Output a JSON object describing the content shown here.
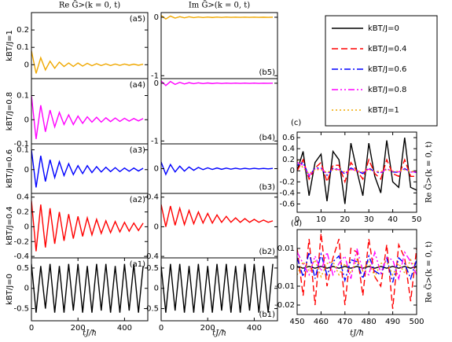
{
  "chart_data": [
    {
      "type": "line",
      "panel": "(a5)",
      "title": "Re G̃>(k = 0, t)",
      "ylabel": "kBT/J=1",
      "color": "#f0a800",
      "x": [
        0,
        20,
        40,
        60,
        80,
        100,
        120,
        140,
        160,
        180,
        200,
        220,
        240,
        260,
        280,
        300,
        320,
        340,
        360,
        380,
        400,
        420,
        440,
        460,
        480
      ],
      "values": [
        0.08,
        -0.05,
        0.04,
        -0.03,
        0.02,
        -0.02,
        0.015,
        -0.01,
        0.01,
        -0.01,
        0.01,
        -0.008,
        0.008,
        -0.006,
        0.006,
        -0.005,
        0.005,
        -0.005,
        0.004,
        -0.004,
        0.004,
        -0.003,
        0.003,
        -0.003,
        0.003
      ],
      "xlim": [
        0,
        500
      ],
      "ylim": [
        -0.08,
        0.3
      ],
      "yticks": [
        0,
        0.1,
        0.2
      ]
    },
    {
      "type": "line",
      "panel": "(a4)",
      "ylabel": "kBT/J=0.8",
      "color": "#ff00ff",
      "x": [
        0,
        20,
        40,
        60,
        80,
        100,
        120,
        140,
        160,
        180,
        200,
        220,
        240,
        260,
        280,
        300,
        320,
        340,
        360,
        380,
        400,
        420,
        440,
        460,
        480
      ],
      "values": [
        0.1,
        -0.08,
        0.06,
        -0.05,
        0.04,
        -0.03,
        0.03,
        -0.02,
        0.02,
        -0.02,
        0.015,
        -0.015,
        0.012,
        -0.01,
        0.01,
        -0.01,
        0.008,
        -0.008,
        0.007,
        -0.007,
        0.006,
        -0.006,
        0.005,
        -0.005,
        0.005
      ],
      "xlim": [
        0,
        500
      ],
      "ylim": [
        -0.1,
        0.17
      ],
      "yticks": [
        -0.1,
        0,
        0.1
      ]
    },
    {
      "type": "line",
      "panel": "(a3)",
      "ylabel": "kBT/J=0.6",
      "color": "#0000ff",
      "x": [
        0,
        20,
        40,
        60,
        80,
        100,
        120,
        140,
        160,
        180,
        200,
        220,
        240,
        260,
        280,
        300,
        320,
        340,
        360,
        380,
        400,
        420,
        440,
        460,
        480
      ],
      "values": [
        0.1,
        -0.09,
        0.07,
        -0.06,
        0.05,
        -0.04,
        0.04,
        -0.03,
        0.03,
        -0.025,
        0.02,
        -0.02,
        0.02,
        -0.015,
        0.015,
        -0.012,
        0.012,
        -0.01,
        0.01,
        -0.01,
        0.008,
        -0.008,
        0.008,
        -0.007,
        0.007
      ],
      "xlim": [
        0,
        500
      ],
      "ylim": [
        -0.12,
        0.13
      ],
      "yticks": [
        0,
        0.1
      ]
    },
    {
      "type": "line",
      "panel": "(a2)",
      "ylabel": "kBT/J=0.4",
      "color": "#ff0000",
      "x": [
        0,
        20,
        40,
        60,
        80,
        100,
        120,
        140,
        160,
        180,
        200,
        220,
        240,
        260,
        280,
        300,
        320,
        340,
        360,
        380,
        400,
        420,
        440,
        460,
        480
      ],
      "values": [
        0.35,
        -0.33,
        0.3,
        -0.28,
        0.25,
        -0.23,
        0.2,
        -0.19,
        0.17,
        -0.16,
        0.14,
        -0.13,
        0.12,
        -0.11,
        0.1,
        -0.09,
        0.08,
        -0.08,
        0.07,
        -0.07,
        0.06,
        -0.06,
        0.05,
        -0.05,
        0.05
      ],
      "xlim": [
        0,
        500
      ],
      "ylim": [
        -0.42,
        0.45
      ],
      "yticks": [
        -0.4,
        -0.2,
        0,
        0.2,
        0.4
      ]
    },
    {
      "type": "line",
      "panel": "(a1)",
      "ylabel": "kBT/J=0",
      "xlabel": "tJ/ħ",
      "color": "#000000",
      "x": [
        0,
        20,
        40,
        60,
        80,
        100,
        120,
        140,
        160,
        180,
        200,
        220,
        240,
        260,
        280,
        300,
        320,
        340,
        360,
        380,
        400,
        420,
        440,
        460,
        480
      ],
      "values": [
        0.6,
        -0.6,
        0.55,
        -0.5,
        0.6,
        -0.6,
        0.55,
        -0.6,
        0.6,
        -0.55,
        0.6,
        -0.6,
        0.55,
        -0.6,
        0.6,
        -0.55,
        0.6,
        -0.6,
        0.55,
        -0.6,
        0.6,
        -0.55,
        0.6,
        -0.6,
        0.55
      ],
      "xlim": [
        0,
        500
      ],
      "xticks": [
        0,
        200,
        400
      ],
      "ylim": [
        -0.8,
        0.75
      ],
      "yticks": [
        -0.5,
        0,
        0.5
      ]
    },
    {
      "type": "line",
      "panel": "(b5)",
      "title": "Im G̃>(k = 0, t)",
      "color": "#f0a800",
      "x": [
        0,
        20,
        40,
        60,
        80,
        100,
        120,
        140,
        160,
        180,
        200,
        220,
        240,
        260,
        280,
        300,
        320,
        340,
        360,
        380,
        400,
        420,
        440,
        460,
        480
      ],
      "values": [
        0.03,
        -0.03,
        0.02,
        -0.015,
        0.01,
        -0.01,
        0.008,
        -0.006,
        0.005,
        -0.005,
        0.004,
        -0.004,
        0.003,
        -0.003,
        0.003,
        -0.002,
        0.002,
        -0.002,
        0.002,
        -0.002,
        0.002,
        -0.001,
        0.001,
        -0.001,
        0.001
      ],
      "xlim": [
        0,
        500
      ],
      "ylim": [
        -1.05,
        0.08
      ],
      "yticks": [
        -1,
        0
      ]
    },
    {
      "type": "line",
      "panel": "(b4)",
      "color": "#ff00ff",
      "x": [
        0,
        20,
        40,
        60,
        80,
        100,
        120,
        140,
        160,
        180,
        200,
        220,
        240,
        260,
        280,
        300,
        320,
        340,
        360,
        380,
        400,
        420,
        440,
        460,
        480
      ],
      "values": [
        0.04,
        -0.04,
        0.03,
        -0.02,
        0.015,
        -0.012,
        0.01,
        -0.008,
        0.007,
        -0.006,
        0.005,
        -0.005,
        0.004,
        -0.004,
        0.003,
        -0.003,
        0.003,
        -0.002,
        0.002,
        -0.002,
        0.002,
        -0.002,
        0.001,
        -0.001,
        0.001
      ],
      "xlim": [
        0,
        500
      ],
      "ylim": [
        -1.05,
        0.08
      ],
      "yticks": [
        -1,
        0
      ]
    },
    {
      "type": "line",
      "panel": "(b3)",
      "color": "#0000ff",
      "x": [
        0,
        20,
        40,
        60,
        80,
        100,
        120,
        140,
        160,
        180,
        200,
        220,
        240,
        260,
        280,
        300,
        320,
        340,
        360,
        380,
        400,
        420,
        440,
        460,
        480
      ],
      "values": [
        0.08,
        -0.07,
        0.05,
        -0.04,
        0.03,
        -0.03,
        0.02,
        -0.02,
        0.015,
        -0.012,
        0.01,
        -0.01,
        0.008,
        -0.008,
        0.006,
        -0.006,
        0.005,
        -0.005,
        0.004,
        -0.004,
        0.004,
        -0.003,
        0.003,
        -0.003,
        0.003
      ],
      "xlim": [
        0,
        500
      ],
      "ylim": [
        -0.3,
        0.3
      ],
      "yticks": [
        0
      ]
    },
    {
      "type": "line",
      "panel": "(b2)",
      "color": "#ff0000",
      "x": [
        0,
        20,
        40,
        60,
        80,
        100,
        120,
        140,
        160,
        180,
        200,
        220,
        240,
        260,
        280,
        300,
        320,
        340,
        360,
        380,
        400,
        420,
        440,
        460,
        480
      ],
      "values": [
        0.3,
        0,
        0.28,
        0.02,
        0.25,
        0.03,
        0.22,
        0.04,
        0.2,
        0.05,
        0.18,
        0.05,
        0.16,
        0.06,
        0.14,
        0.06,
        0.12,
        0.06,
        0.11,
        0.06,
        0.1,
        0.06,
        0.09,
        0.06,
        0.08
      ],
      "xlim": [
        0,
        500
      ],
      "ylim": [
        -0.42,
        0.45
      ],
      "yticks": [
        -0.4,
        0,
        0.4
      ]
    },
    {
      "type": "line",
      "panel": "(b1)",
      "xlabel": "tJ/ħ",
      "color": "#000000",
      "x": [
        0,
        20,
        40,
        60,
        80,
        100,
        120,
        140,
        160,
        180,
        200,
        220,
        240,
        260,
        280,
        300,
        320,
        340,
        360,
        380,
        400,
        420,
        440,
        460,
        480
      ],
      "values": [
        0.55,
        -0.6,
        0.6,
        -0.55,
        0.6,
        -0.6,
        0.55,
        -0.6,
        0.6,
        -0.6,
        0.55,
        -0.6,
        0.6,
        -0.55,
        0.6,
        -0.6,
        0.55,
        -0.6,
        0.6,
        -0.55,
        0.6,
        -0.6,
        0.55,
        -0.6,
        0.6
      ],
      "xlim": [
        0,
        500
      ],
      "xticks": [
        0,
        200,
        400
      ],
      "ylim": [
        -0.8,
        0.75
      ],
      "yticks": [
        -0.5,
        0,
        0.5
      ]
    },
    {
      "type": "line",
      "panel": "(c)",
      "ylabel": "Re G̃>(k = 0, t)",
      "x": [
        0,
        2.5,
        5,
        7.5,
        10,
        12.5,
        15,
        17.5,
        20,
        22.5,
        25,
        27.5,
        30,
        32.5,
        35,
        37.5,
        40,
        42.5,
        45,
        47.5,
        50
      ],
      "series": [
        {
          "name": "kBT/J=0",
          "color": "#000000",
          "linestyle": "solid",
          "values": [
            0,
            0.35,
            -0.45,
            0.15,
            0.3,
            -0.55,
            0.35,
            0.2,
            -0.6,
            0.5,
            0,
            -0.45,
            0.5,
            -0.1,
            -0.4,
            0.55,
            -0.2,
            -0.3,
            0.6,
            -0.3,
            -0.35
          ]
        },
        {
          "name": "kBT/J=0.4",
          "color": "#ff0000",
          "linestyle": "dashed",
          "values": [
            0,
            0.2,
            -0.15,
            0.05,
            0.15,
            -0.2,
            0.1,
            0.1,
            -0.2,
            0.15,
            0,
            -0.15,
            0.2,
            -0.05,
            -0.15,
            0.2,
            -0.05,
            -0.1,
            0.2,
            -0.1,
            -0.1
          ]
        },
        {
          "name": "kBT/J=0.6",
          "color": "#0000ff",
          "linestyle": "dashdot",
          "values": [
            0.1,
            0.15,
            -0.1,
            0.05,
            0.05,
            -0.08,
            0.04,
            0.03,
            -0.06,
            0.05,
            0,
            -0.05,
            0.05,
            -0.02,
            -0.04,
            0.04,
            -0.02,
            -0.03,
            0.04,
            -0.02,
            -0.03
          ]
        },
        {
          "name": "kBT/J=0.8",
          "color": "#ff00ff",
          "linestyle": "dashdotdot",
          "values": [
            0.15,
            0.1,
            -0.08,
            0.03,
            0.04,
            -0.05,
            0.03,
            0.02,
            -0.04,
            0.03,
            0,
            -0.03,
            0.03,
            -0.01,
            -0.03,
            0.03,
            -0.01,
            -0.02,
            0.03,
            -0.02,
            -0.02
          ]
        },
        {
          "name": "kBT/J=1",
          "color": "#f0a800",
          "linestyle": "dotted",
          "values": [
            0.2,
            0.05,
            -0.05,
            0.02,
            0.02,
            -0.03,
            0.02,
            0.01,
            -0.02,
            0.02,
            0,
            -0.02,
            0.02,
            -0.01,
            -0.01,
            0.02,
            -0.01,
            -0.01,
            0.02,
            -0.01,
            -0.01
          ]
        }
      ],
      "xlim": [
        0,
        50
      ],
      "xticks": [
        0,
        10,
        20,
        30,
        40,
        50
      ],
      "ylim": [
        -0.75,
        0.7
      ],
      "yticks": [
        -0.6,
        -0.4,
        -0.2,
        0,
        0.2,
        0.4,
        0.6
      ]
    },
    {
      "type": "line",
      "panel": "(d)",
      "ylabel": "Re G̃>(k = 0, t)",
      "xlabel": "tJ/ħ",
      "x": [
        450,
        452.5,
        455,
        457.5,
        460,
        462.5,
        465,
        467.5,
        470,
        472.5,
        475,
        477.5,
        480,
        482.5,
        485,
        487.5,
        490,
        492.5,
        495,
        497.5,
        500
      ],
      "series": [
        {
          "color": "#000000",
          "linestyle": "solid",
          "values": [
            0.0005,
            -0.0005,
            0.0005,
            -0.0005,
            0.0005,
            -0.0005,
            0.0005,
            -0.0005,
            0.0005,
            -0.0005,
            0.0005,
            -0.0005,
            0.0005,
            -0.0005,
            0.0005,
            -0.0005,
            0.0005,
            -0.0005,
            0.0005,
            -0.0005,
            0.0005
          ]
        },
        {
          "color": "#ff0000",
          "linestyle": "dashed",
          "values": [
            0.01,
            -0.015,
            0.015,
            -0.02,
            0.018,
            -0.01,
            0.005,
            0.015,
            -0.02,
            0.01,
            0.008,
            -0.015,
            0.015,
            -0.005,
            -0.01,
            0.012,
            -0.022,
            0.012,
            0.005,
            -0.018,
            0.01
          ]
        },
        {
          "color": "#0000ff",
          "linestyle": "dashdot",
          "values": [
            0.005,
            -0.005,
            0.008,
            -0.006,
            0.007,
            -0.004,
            0.003,
            0.006,
            -0.007,
            0.004,
            0.003,
            -0.006,
            0.006,
            -0.002,
            -0.004,
            0.005,
            -0.008,
            0.005,
            0.002,
            -0.006,
            0.004
          ]
        },
        {
          "color": "#ff00ff",
          "linestyle": "dashdotdot",
          "values": [
            0.008,
            0.002,
            -0.004,
            0.006,
            -0.002,
            0.008,
            -0.004,
            0.002,
            0.006,
            -0.006,
            0.01,
            -0.002,
            -0.004,
            0.008,
            -0.003,
            0.005,
            0.004,
            -0.006,
            0.008,
            0.003,
            -0.004
          ]
        },
        {
          "color": "#f0a800",
          "linestyle": "dotted",
          "values": [
            -0.004,
            0.003,
            -0.002,
            0.004,
            -0.005,
            0.002,
            0.003,
            -0.004,
            0.002,
            -0.003,
            0.004,
            -0.002,
            0.003,
            -0.005,
            0.002,
            0.003,
            -0.004,
            0.002,
            -0.003,
            0.004,
            -0.002
          ]
        }
      ],
      "xlim": [
        450,
        500
      ],
      "xticks": [
        450,
        460,
        470,
        480,
        490,
        500
      ],
      "ylim": [
        -0.025,
        0.02
      ],
      "yticks": [
        -0.02,
        -0.01,
        0,
        0.01
      ]
    }
  ]
}
